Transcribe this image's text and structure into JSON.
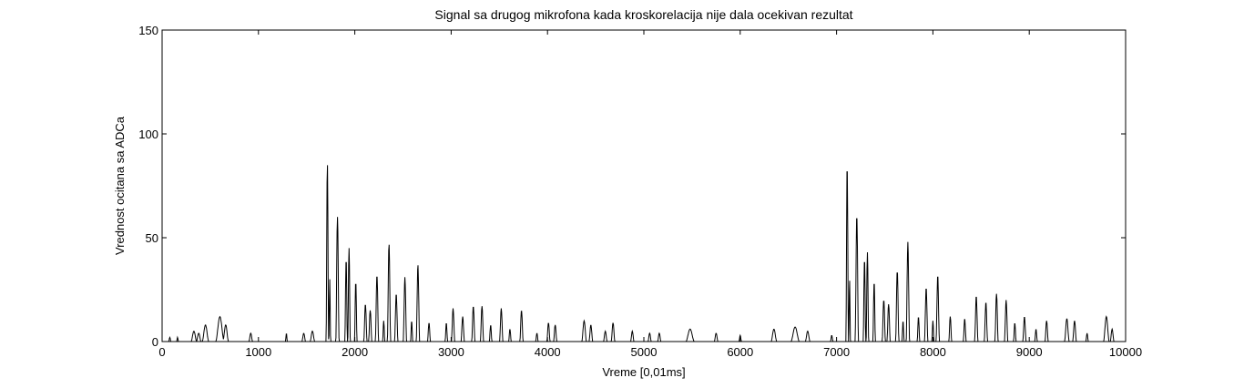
{
  "chart_data": {
    "type": "line",
    "title": "Signal sa drugog mikrofona kada kroskorelacija nije dala ocekivan rezultat",
    "xlabel": "Vreme [0,01ms]",
    "ylabel": "Vrednost ocitana sa ADCa",
    "xlim": [
      0,
      10000
    ],
    "ylim": [
      0,
      150
    ],
    "xticks": [
      0,
      1000,
      2000,
      3000,
      4000,
      5000,
      6000,
      7000,
      8000,
      9000,
      10000
    ],
    "yticks": [
      0,
      50,
      100,
      150
    ],
    "grid": false,
    "legend": "none",
    "line_color": "#000000",
    "series": [
      {
        "values_note_removed": true,
        "peaks": [
          {
            "x": 80,
            "y": 2,
            "w": 12
          },
          {
            "x": 160,
            "y": 2,
            "w": 10
          },
          {
            "x": 330,
            "y": 5,
            "w": 30
          },
          {
            "x": 380,
            "y": 4,
            "w": 25
          },
          {
            "x": 450,
            "y": 8,
            "w": 35
          },
          {
            "x": 600,
            "y": 12,
            "w": 45
          },
          {
            "x": 660,
            "y": 8,
            "w": 30
          },
          {
            "x": 920,
            "y": 4,
            "w": 20
          },
          {
            "x": 1290,
            "y": 4,
            "w": 10
          },
          {
            "x": 1470,
            "y": 4,
            "w": 20
          },
          {
            "x": 1560,
            "y": 5,
            "w": 25
          },
          {
            "x": 1715,
            "y": 86,
            "w": 14
          },
          {
            "x": 1740,
            "y": 30,
            "w": 10
          },
          {
            "x": 1820,
            "y": 60,
            "w": 18
          },
          {
            "x": 1910,
            "y": 40,
            "w": 14
          },
          {
            "x": 1940,
            "y": 45,
            "w": 14
          },
          {
            "x": 2010,
            "y": 29,
            "w": 14
          },
          {
            "x": 2110,
            "y": 18,
            "w": 18
          },
          {
            "x": 2160,
            "y": 15,
            "w": 18
          },
          {
            "x": 2230,
            "y": 32,
            "w": 18
          },
          {
            "x": 2300,
            "y": 10,
            "w": 12
          },
          {
            "x": 2355,
            "y": 47,
            "w": 18
          },
          {
            "x": 2430,
            "y": 23,
            "w": 18
          },
          {
            "x": 2520,
            "y": 31,
            "w": 18
          },
          {
            "x": 2590,
            "y": 10,
            "w": 12
          },
          {
            "x": 2655,
            "y": 37,
            "w": 18
          },
          {
            "x": 2770,
            "y": 9,
            "w": 16
          },
          {
            "x": 2950,
            "y": 9,
            "w": 14
          },
          {
            "x": 3020,
            "y": 16,
            "w": 18
          },
          {
            "x": 3120,
            "y": 12,
            "w": 18
          },
          {
            "x": 3230,
            "y": 17,
            "w": 18
          },
          {
            "x": 3320,
            "y": 17,
            "w": 18
          },
          {
            "x": 3410,
            "y": 8,
            "w": 14
          },
          {
            "x": 3520,
            "y": 16,
            "w": 18
          },
          {
            "x": 3610,
            "y": 6,
            "w": 14
          },
          {
            "x": 3730,
            "y": 15,
            "w": 18
          },
          {
            "x": 3890,
            "y": 4,
            "w": 14
          },
          {
            "x": 4010,
            "y": 9,
            "w": 18
          },
          {
            "x": 4080,
            "y": 8,
            "w": 18
          },
          {
            "x": 4380,
            "y": 10,
            "w": 25
          },
          {
            "x": 4450,
            "y": 8,
            "w": 20
          },
          {
            "x": 4600,
            "y": 5,
            "w": 20
          },
          {
            "x": 4680,
            "y": 9,
            "w": 20
          },
          {
            "x": 4880,
            "y": 5,
            "w": 18
          },
          {
            "x": 5060,
            "y": 4,
            "w": 18
          },
          {
            "x": 5160,
            "y": 4,
            "w": 18
          },
          {
            "x": 5480,
            "y": 6,
            "w": 45
          },
          {
            "x": 5750,
            "y": 4,
            "w": 20
          },
          {
            "x": 6000,
            "y": 3,
            "w": 14
          },
          {
            "x": 6350,
            "y": 6,
            "w": 30
          },
          {
            "x": 6570,
            "y": 7,
            "w": 45
          },
          {
            "x": 6700,
            "y": 5,
            "w": 25
          },
          {
            "x": 6950,
            "y": 3,
            "w": 14
          },
          {
            "x": 7110,
            "y": 86,
            "w": 14
          },
          {
            "x": 7135,
            "y": 30,
            "w": 10
          },
          {
            "x": 7210,
            "y": 61,
            "w": 18
          },
          {
            "x": 7290,
            "y": 40,
            "w": 14
          },
          {
            "x": 7320,
            "y": 43,
            "w": 14
          },
          {
            "x": 7390,
            "y": 29,
            "w": 14
          },
          {
            "x": 7490,
            "y": 20,
            "w": 18
          },
          {
            "x": 7540,
            "y": 18,
            "w": 18
          },
          {
            "x": 7630,
            "y": 34,
            "w": 18
          },
          {
            "x": 7690,
            "y": 10,
            "w": 12
          },
          {
            "x": 7740,
            "y": 48,
            "w": 18
          },
          {
            "x": 7850,
            "y": 12,
            "w": 14
          },
          {
            "x": 7930,
            "y": 26,
            "w": 18
          },
          {
            "x": 8000,
            "y": 10,
            "w": 12
          },
          {
            "x": 8050,
            "y": 32,
            "w": 18
          },
          {
            "x": 8180,
            "y": 12,
            "w": 16
          },
          {
            "x": 8330,
            "y": 11,
            "w": 16
          },
          {
            "x": 8450,
            "y": 22,
            "w": 18
          },
          {
            "x": 8550,
            "y": 19,
            "w": 18
          },
          {
            "x": 8660,
            "y": 23,
            "w": 18
          },
          {
            "x": 8760,
            "y": 20,
            "w": 18
          },
          {
            "x": 8850,
            "y": 9,
            "w": 14
          },
          {
            "x": 8950,
            "y": 12,
            "w": 18
          },
          {
            "x": 9070,
            "y": 6,
            "w": 14
          },
          {
            "x": 9180,
            "y": 10,
            "w": 18
          },
          {
            "x": 9390,
            "y": 11,
            "w": 25
          },
          {
            "x": 9470,
            "y": 10,
            "w": 20
          },
          {
            "x": 9600,
            "y": 4,
            "w": 14
          },
          {
            "x": 9800,
            "y": 12,
            "w": 30
          },
          {
            "x": 9860,
            "y": 6,
            "w": 20
          }
        ]
      }
    ]
  }
}
